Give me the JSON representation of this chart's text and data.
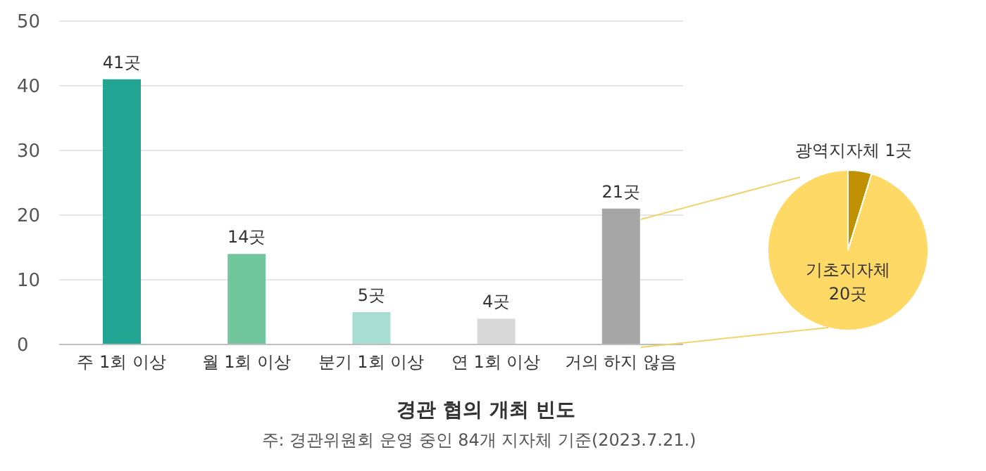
{
  "chart_data": [
    {
      "type": "bar",
      "title": "경관 협의 개최 빈도",
      "annotations": [
        "주: 경관위원회 운영 중인 84개 지자체 기준(2023.7.21.)"
      ],
      "categories": [
        "주 1회 이상",
        "월 1회 이상",
        "분기 1회 이상",
        "연 1회 이상",
        "거의 하지 않음"
      ],
      "values": [
        41,
        14,
        5,
        4,
        21
      ],
      "value_labels": [
        "41곳",
        "14곳",
        "5곳",
        "4곳",
        "21곳"
      ],
      "colors": [
        "#22a693",
        "#72c69e",
        "#a8ddd3",
        "#d9d9d9",
        "#a6a6a6"
      ],
      "ylim": [
        0,
        50
      ],
      "yticks": [
        0,
        10,
        20,
        30,
        40,
        50
      ],
      "grid": "y"
    },
    {
      "type": "pie",
      "categories": [
        "광역지자체",
        "기초지자체"
      ],
      "values": [
        1,
        20
      ],
      "value_labels": [
        "1곳",
        "20곳"
      ],
      "colors": [
        "#bf9000",
        "#ffd966"
      ]
    }
  ]
}
